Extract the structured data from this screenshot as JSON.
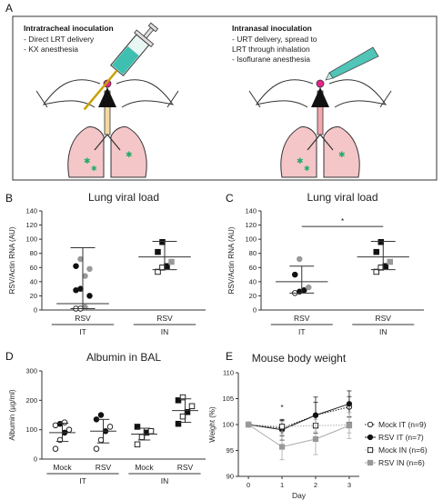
{
  "panels": {
    "A": "A",
    "B": "B",
    "C": "C",
    "D": "D",
    "E": "E"
  },
  "schematic": {
    "left_title": "Intratracheal inoculation",
    "left_lines": [
      "- Direct LRT delivery",
      "- KX anesthesia"
    ],
    "right_title": "Intranasal inoculation",
    "right_lines": [
      "- URT delivery, spread to",
      "LRT through inhalation",
      "- Isoflurane anesthesia"
    ],
    "colors": {
      "lung": "#f4c6c8",
      "trachea": "#f2d9a0",
      "syringe_fluid": "#3fbfb0",
      "nose": "#e8238a"
    }
  },
  "chart_data": [
    {
      "id": "B",
      "type": "scatter",
      "title": "Lung viral load",
      "ylabel": "RSV/Actin RNA (AU)",
      "ylim": [
        0,
        140
      ],
      "yticks": [
        0,
        20,
        40,
        60,
        80,
        100,
        120,
        140
      ],
      "categories": [
        "RSV",
        "RSV"
      ],
      "groups": [
        "IT",
        "IN"
      ],
      "points": [
        {
          "cat": 0,
          "y": 2,
          "marker": "circle-open"
        },
        {
          "cat": 0,
          "y": 2,
          "marker": "circle-open"
        },
        {
          "cat": 0,
          "y": 4,
          "marker": "circle-gray"
        },
        {
          "cat": 0,
          "y": 20,
          "marker": "circle-filled"
        },
        {
          "cat": 0,
          "y": 28,
          "marker": "circle-filled"
        },
        {
          "cat": 0,
          "y": 30,
          "marker": "circle-filled"
        },
        {
          "cat": 0,
          "y": 48,
          "marker": "circle-gray"
        },
        {
          "cat": 0,
          "y": 58,
          "marker": "circle-gray"
        },
        {
          "cat": 0,
          "y": 62,
          "marker": "circle-filled"
        },
        {
          "cat": 0,
          "y": 72,
          "marker": "circle-gray"
        },
        {
          "cat": 1,
          "y": 54,
          "marker": "square-open"
        },
        {
          "cat": 1,
          "y": 60,
          "marker": "square-open"
        },
        {
          "cat": 1,
          "y": 62,
          "marker": "square-filled"
        },
        {
          "cat": 1,
          "y": 68,
          "marker": "square-gray"
        },
        {
          "cat": 1,
          "y": 82,
          "marker": "square-filled"
        },
        {
          "cat": 1,
          "y": 96,
          "marker": "square-filled"
        }
      ],
      "summary": [
        {
          "cat": 0,
          "mean": 9,
          "low": 2,
          "high": 88
        },
        {
          "cat": 1,
          "mean": 75,
          "low": 57,
          "high": 97
        }
      ]
    },
    {
      "id": "C",
      "type": "scatter",
      "title": "Lung viral load",
      "ylabel": "RSV/Actin RNA (AU)",
      "ylim": [
        0,
        140
      ],
      "yticks": [
        0,
        20,
        40,
        60,
        80,
        100,
        120,
        140
      ],
      "categories": [
        "RSV",
        "RSV"
      ],
      "groups": [
        "IT",
        "IN"
      ],
      "significance": {
        "from": 0,
        "to": 1,
        "y": 118,
        "label": "*"
      },
      "points": [
        {
          "cat": 0,
          "y": 24,
          "marker": "circle-open"
        },
        {
          "cat": 0,
          "y": 26,
          "marker": "circle-filled"
        },
        {
          "cat": 0,
          "y": 28,
          "marker": "circle-filled"
        },
        {
          "cat": 0,
          "y": 32,
          "marker": "circle-gray"
        },
        {
          "cat": 0,
          "y": 50,
          "marker": "circle-filled"
        },
        {
          "cat": 0,
          "y": 72,
          "marker": "circle-gray"
        },
        {
          "cat": 1,
          "y": 54,
          "marker": "square-open"
        },
        {
          "cat": 1,
          "y": 60,
          "marker": "square-open"
        },
        {
          "cat": 1,
          "y": 62,
          "marker": "square-filled"
        },
        {
          "cat": 1,
          "y": 68,
          "marker": "square-gray"
        },
        {
          "cat": 1,
          "y": 82,
          "marker": "square-filled"
        },
        {
          "cat": 1,
          "y": 96,
          "marker": "square-filled"
        }
      ],
      "summary": [
        {
          "cat": 0,
          "mean": 40,
          "low": 24,
          "high": 62
        },
        {
          "cat": 1,
          "mean": 75,
          "low": 57,
          "high": 97
        }
      ]
    },
    {
      "id": "D",
      "type": "scatter",
      "title": "Albumin in BAL",
      "ylabel": "Albumin (µg/ml)",
      "ylim": [
        0,
        300
      ],
      "yticks": [
        0,
        100,
        200,
        300
      ],
      "categories": [
        "Mock",
        "RSV",
        "Mock",
        "RSV"
      ],
      "groups": [
        "IT",
        "IN"
      ],
      "points": [
        {
          "cat": 0,
          "y": 35,
          "marker": "circle-open"
        },
        {
          "cat": 0,
          "y": 65,
          "marker": "circle-open"
        },
        {
          "cat": 0,
          "y": 90,
          "marker": "circle-filled"
        },
        {
          "cat": 0,
          "y": 100,
          "marker": "circle-open"
        },
        {
          "cat": 0,
          "y": 115,
          "marker": "circle-open"
        },
        {
          "cat": 0,
          "y": 120,
          "marker": "circle-filled"
        },
        {
          "cat": 0,
          "y": 125,
          "marker": "circle-open"
        },
        {
          "cat": 1,
          "y": 35,
          "marker": "circle-open"
        },
        {
          "cat": 1,
          "y": 65,
          "marker": "circle-open"
        },
        {
          "cat": 1,
          "y": 95,
          "marker": "circle-filled"
        },
        {
          "cat": 1,
          "y": 110,
          "marker": "circle-open"
        },
        {
          "cat": 1,
          "y": 135,
          "marker": "circle-filled"
        },
        {
          "cat": 1,
          "y": 150,
          "marker": "circle-filled"
        },
        {
          "cat": 2,
          "y": 50,
          "marker": "square-open"
        },
        {
          "cat": 2,
          "y": 75,
          "marker": "square-open"
        },
        {
          "cat": 2,
          "y": 90,
          "marker": "square-filled"
        },
        {
          "cat": 2,
          "y": 95,
          "marker": "square-open"
        },
        {
          "cat": 2,
          "y": 110,
          "marker": "square-filled"
        },
        {
          "cat": 3,
          "y": 120,
          "marker": "square-filled"
        },
        {
          "cat": 3,
          "y": 145,
          "marker": "square-open"
        },
        {
          "cat": 3,
          "y": 160,
          "marker": "square-filled"
        },
        {
          "cat": 3,
          "y": 180,
          "marker": "square-open"
        },
        {
          "cat": 3,
          "y": 200,
          "marker": "square-filled"
        },
        {
          "cat": 3,
          "y": 210,
          "marker": "square-open"
        }
      ],
      "summary": [
        {
          "cat": 0,
          "mean": 90,
          "low": 60,
          "high": 122
        },
        {
          "cat": 1,
          "mean": 95,
          "low": 55,
          "high": 135
        },
        {
          "cat": 2,
          "mean": 85,
          "low": 65,
          "high": 105
        },
        {
          "cat": 3,
          "mean": 165,
          "low": 125,
          "high": 205
        }
      ]
    },
    {
      "id": "E",
      "type": "line",
      "title": "Mouse body weight",
      "xlabel": "Day",
      "ylabel": "Weight (%)",
      "x": [
        0,
        1,
        2,
        3
      ],
      "xlim": [
        -0.3,
        3.3
      ],
      "ylim": [
        90,
        110
      ],
      "yticks": [
        90,
        95,
        100,
        105,
        110
      ],
      "annotation": {
        "x": 1,
        "y": 102.8,
        "label": "*"
      },
      "series": [
        {
          "name": "Mock IT (n=9)",
          "values": [
            100,
            99.3,
            101.8,
            103.4
          ],
          "err": [
            0.3,
            1.5,
            2.5,
            2.0
          ],
          "marker": "circle-open",
          "line": "dotted",
          "color": "#222222"
        },
        {
          "name": "RSV IT (n=7)",
          "values": [
            100,
            99.0,
            101.8,
            104.0
          ],
          "err": [
            0.3,
            2.0,
            3.5,
            2.5
          ],
          "marker": "circle-filled",
          "line": "solid",
          "color": "#222222"
        },
        {
          "name": "Mock IN (n=6)",
          "values": [
            100,
            99.6,
            99.8,
            99.9
          ],
          "err": [
            0.3,
            1.0,
            1.2,
            1.5
          ],
          "marker": "square-open",
          "line": "dotted",
          "color": "#aaaaaa"
        },
        {
          "name": "RSV IN (n=6)",
          "values": [
            100,
            95.7,
            97.2,
            99.8
          ],
          "err": [
            0.3,
            2.5,
            3.0,
            2.5
          ],
          "marker": "square-gray",
          "line": "solid",
          "color": "#aaaaaa"
        }
      ]
    }
  ]
}
